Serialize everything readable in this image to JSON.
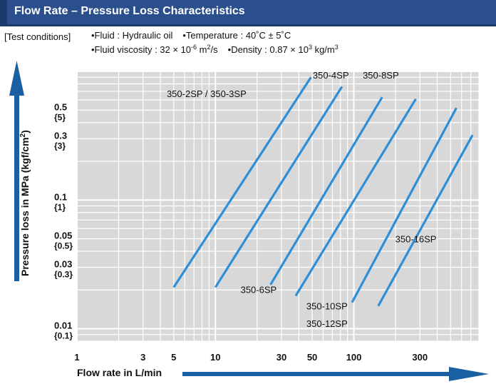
{
  "header": {
    "title": "Flow Rate – Pressure Loss Characteristics",
    "bar_color": "#2b4f8c"
  },
  "conditions": {
    "label": "[Test conditions]",
    "fluid": "•Fluid : Hydraulic oil",
    "temperature": "•Temperature : 40˚C ± 5˚C",
    "viscosity_pre": "•Fluid viscosity : 32 × 10",
    "viscosity_exp": "-6",
    "viscosity_unit": " m",
    "viscosity_unit_exp": "2",
    "viscosity_post": "/s",
    "density_pre": "•Density : 0.87 × 10",
    "density_exp": "3",
    "density_unit": " kg/m",
    "density_unit_exp": "3"
  },
  "axes": {
    "y_title": "Pressure loss in MPa (kgf/cm",
    "y_title_exp": "2",
    "y_title_post": ")",
    "x_title": "Flow rate in L/min"
  },
  "chart_data": {
    "type": "line",
    "x_scale": "log",
    "y_scale": "log",
    "xlim": [
      1,
      800
    ],
    "ylim": [
      0.008,
      1.0
    ],
    "grid": true,
    "line_color": "#2e8fd6",
    "arrow_color": "#1b5fa3",
    "plot_bg": "#d8d8d8",
    "x_ticks": [
      {
        "value": 1,
        "label": "1"
      },
      {
        "value": 3,
        "label": "3"
      },
      {
        "value": 5,
        "label": "5"
      },
      {
        "value": 10,
        "label": "10"
      },
      {
        "value": 30,
        "label": "30"
      },
      {
        "value": 50,
        "label": "50"
      },
      {
        "value": 100,
        "label": "100"
      },
      {
        "value": 300,
        "label": "300"
      }
    ],
    "y_ticks": [
      {
        "value": 0.5,
        "label": "0.5",
        "sub": "{5}"
      },
      {
        "value": 0.3,
        "label": "0.3",
        "sub": "{3}"
      },
      {
        "value": 0.1,
        "label": "0.1",
        "sub": "{1}"
      },
      {
        "value": 0.05,
        "label": "0.05",
        "sub": "{0.5}"
      },
      {
        "value": 0.03,
        "label": "0.03",
        "sub": "{0.3}"
      },
      {
        "value": 0.01,
        "label": "0.01",
        "sub": "{0.1}"
      }
    ],
    "series": [
      {
        "name": "350-2SP / 350-3SP",
        "points": [
          [
            5.0,
            0.021
          ],
          [
            49,
            0.9
          ]
        ]
      },
      {
        "name": "350-4SP",
        "points": [
          [
            10,
            0.021
          ],
          [
            82,
            0.76
          ]
        ]
      },
      {
        "name": "350-6SP",
        "points": [
          [
            25,
            0.022
          ],
          [
            160,
            0.63
          ]
        ]
      },
      {
        "name": "350-8SP",
        "points": [
          [
            38,
            0.018
          ],
          [
            280,
            0.61
          ]
        ]
      },
      {
        "name": "350-10SP / 350-12SP",
        "points": [
          [
            97,
            0.016
          ],
          [
            550,
            0.52
          ]
        ]
      },
      {
        "name": "350-16SP",
        "points": [
          [
            150,
            0.015
          ],
          [
            720,
            0.32
          ]
        ]
      }
    ],
    "labels": [
      {
        "text": "350-2SP / 350-3SP",
        "x": 4.45,
        "y": 0.63
      },
      {
        "text": "350-4SP",
        "x": 50.5,
        "y": 0.88
      },
      {
        "text": "350-8SP",
        "x": 116,
        "y": 0.88
      },
      {
        "text": "350-6SP",
        "x": 15.2,
        "y": 0.0189
      },
      {
        "text": "350-10SP",
        "x": 45.4,
        "y": 0.0141
      },
      {
        "text": "350-12SP",
        "x": 45.4,
        "y": 0.0103
      },
      {
        "text": "350-16SP",
        "x": 199,
        "y": 0.047
      }
    ]
  }
}
